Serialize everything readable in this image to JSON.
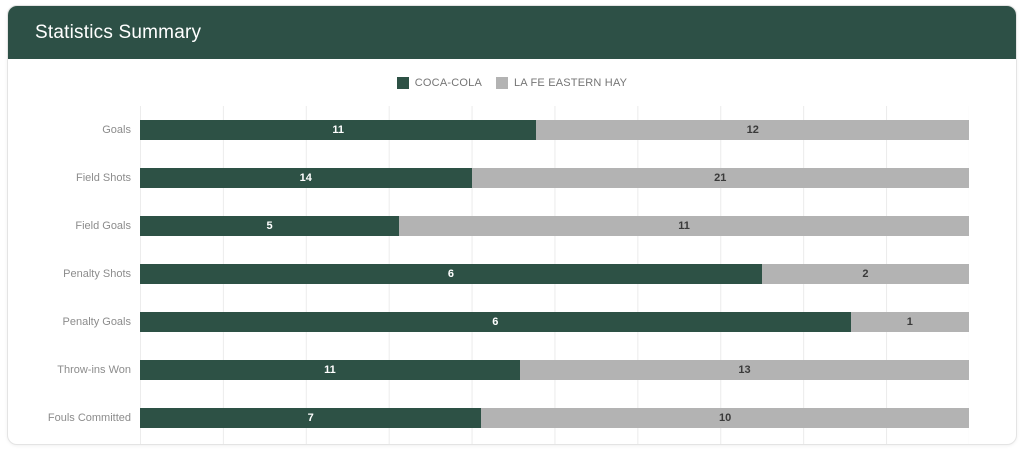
{
  "header": {
    "title": "Statistics Summary"
  },
  "colors": {
    "header_bg": "#2d5046",
    "team_a": "#2d5145",
    "team_b": "#b3b3b3",
    "grid": "#ececec",
    "category_label_text": "#8c8c8c",
    "legend_text": "#757575",
    "value_on_team_a": "#ffffff",
    "value_on_team_b": "#3a3a3a"
  },
  "legend": {
    "items": [
      {
        "label": "COCA-COLA",
        "color": "#2d5145"
      },
      {
        "label": "LA FE EASTERN HAY",
        "color": "#b3b3b3"
      }
    ]
  },
  "chart_data": {
    "type": "bar",
    "orientation": "horizontal",
    "stacked": true,
    "normalized_to_full_width": true,
    "legend_position": "top",
    "grid": "vertical gridlines, 10 equal divisions, no axis tick labels",
    "categories": [
      "Goals",
      "Field Shots",
      "Field Goals",
      "Penalty Shots",
      "Penalty Goals",
      "Throw-ins Won",
      "Fouls Committed"
    ],
    "series": [
      {
        "name": "COCA-COLA",
        "color": "#2d5145",
        "values": [
          11,
          14,
          5,
          6,
          6,
          11,
          7
        ]
      },
      {
        "name": "LA FE EASTERN HAY",
        "color": "#b3b3b3",
        "values": [
          12,
          21,
          11,
          2,
          1,
          13,
          10
        ]
      }
    ]
  }
}
